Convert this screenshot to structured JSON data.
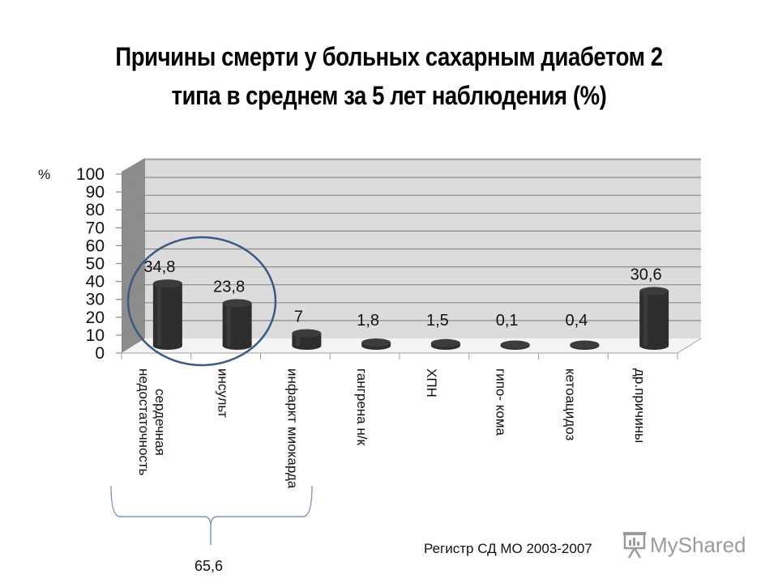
{
  "title": {
    "line1": "Причины смерти у больных сахарным диабетом 2",
    "line2": "типа в среднем за 5 лет наблюдения  (%)"
  },
  "axis": {
    "unit_label": "%",
    "y_ticks": [
      "100",
      "90",
      "80",
      "70",
      "60",
      "50",
      "40",
      "30",
      "20",
      "10",
      "0"
    ]
  },
  "categories": [
    {
      "label_lines": [
        "сердечная",
        "недостаточность"
      ],
      "value_label": "34,8"
    },
    {
      "label_lines": [
        "инсульт"
      ],
      "value_label": "23,8"
    },
    {
      "label_lines": [
        "инфаркт миокарда"
      ],
      "value_label": "7"
    },
    {
      "label_lines": [
        "гангрена н/к"
      ],
      "value_label": "1,8"
    },
    {
      "label_lines": [
        "ХПН"
      ],
      "value_label": "1,5"
    },
    {
      "label_lines": [
        "гипо- кома"
      ],
      "value_label": "0,1"
    },
    {
      "label_lines": [
        "кетоацидоз"
      ],
      "value_label": "0,4"
    },
    {
      "label_lines": [
        "др.причины"
      ],
      "value_label": "30,6"
    }
  ],
  "annotation": {
    "brace_total": "65,6",
    "source": "Регистр СД МО 2003-2007",
    "watermark": "MyShared"
  },
  "colors": {
    "back_wall": "#dcdcdc",
    "side_wall": "#8c8c8c",
    "floor": "#f2f2f2",
    "gridline": "#8a8a8a",
    "bar": "#2e2e30",
    "bar_top": "#3c3c3f",
    "circle": "#3d5a80",
    "brace": "#7f97b6"
  },
  "chart_data": {
    "type": "bar",
    "title": "Причины смерти у больных сахарным диабетом 2 типа в среднем за 5 лет наблюдения (%)",
    "categories": [
      "сердечная недостаточность",
      "инсульт",
      "инфаркт миокарда",
      "гангрена н/к",
      "ХПН",
      "гипо- кома",
      "кетоацидоз",
      "др.причины"
    ],
    "values": [
      34.8,
      23.8,
      7,
      1.8,
      1.5,
      0.1,
      0.4,
      30.6
    ],
    "xlabel": "",
    "ylabel": "%",
    "ylim": [
      0,
      100
    ],
    "y_ticks": [
      0,
      10,
      20,
      30,
      40,
      50,
      60,
      70,
      80,
      90,
      100
    ],
    "grid": true,
    "style": "3d-cylinder",
    "annotations": [
      {
        "type": "circle",
        "around": [
          "сердечная недостаточность",
          "инсульт"
        ]
      },
      {
        "type": "brace",
        "span": [
          "сердечная недостаточность",
          "инсульт",
          "инфаркт миокарда"
        ],
        "text": "65,6"
      },
      {
        "type": "text",
        "text": "Регистр СД МО 2003-2007"
      }
    ]
  }
}
